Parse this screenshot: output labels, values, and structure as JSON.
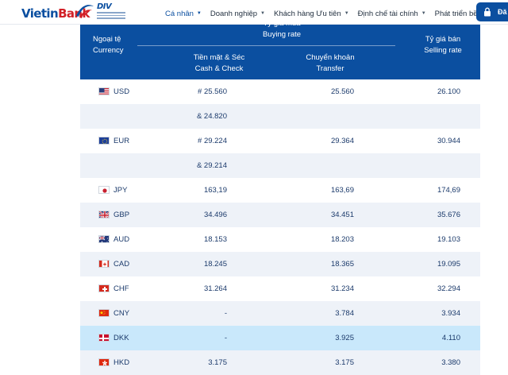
{
  "header": {
    "logo": {
      "text_part1": "Vietin",
      "text_part2": "Bank",
      "partner": "DIV"
    },
    "nav": [
      {
        "label": "Cá nhân",
        "active": true
      },
      {
        "label": "Doanh nghiệp",
        "active": false
      },
      {
        "label": "Khách hàng Ưu tiên",
        "active": false
      },
      {
        "label": "Định chế tài chính",
        "active": false
      },
      {
        "label": "Phát triển bền vững",
        "active": false
      }
    ],
    "login_label": "Đă"
  },
  "table": {
    "headers": {
      "currency_vi": "Ngoại tệ",
      "currency_en": "Currency",
      "buying_vi": "Tỷ giá mua",
      "buying_en": "Buying rate",
      "cash_vi": "Tiền mặt & Séc",
      "cash_en": "Cash & Check",
      "transfer_vi": "Chuyển khoản",
      "transfer_en": "Transfer",
      "selling_vi": "Tỷ giá bán",
      "selling_en": "Selling rate"
    },
    "rows": [
      {
        "flag": "us-flag-icon",
        "code": "USD",
        "cash": "# 25.560",
        "transfer": "25.560",
        "sell": "26.100"
      },
      {
        "flag": "",
        "code": "",
        "cash": "& 24.820",
        "transfer": "",
        "sell": ""
      },
      {
        "flag": "eu-flag-icon",
        "code": "EUR",
        "cash": "# 29.224",
        "transfer": "29.364",
        "sell": "30.944"
      },
      {
        "flag": "",
        "code": "",
        "cash": "& 29.214",
        "transfer": "",
        "sell": ""
      },
      {
        "flag": "jp-flag-icon",
        "code": "JPY",
        "cash": "163,19",
        "transfer": "163,69",
        "sell": "174,69"
      },
      {
        "flag": "gb-flag-icon",
        "code": "GBP",
        "cash": "34.496",
        "transfer": "34.451",
        "sell": "35.676"
      },
      {
        "flag": "au-flag-icon",
        "code": "AUD",
        "cash": "18.153",
        "transfer": "18.203",
        "sell": "19.103"
      },
      {
        "flag": "ca-flag-icon",
        "code": "CAD",
        "cash": "18.245",
        "transfer": "18.365",
        "sell": "19.095"
      },
      {
        "flag": "ch-flag-icon",
        "code": "CHF",
        "cash": "31.264",
        "transfer": "31.234",
        "sell": "32.294"
      },
      {
        "flag": "cn-flag-icon",
        "code": "CNY",
        "cash": "-",
        "transfer": "3.784",
        "sell": "3.934"
      },
      {
        "flag": "dk-flag-icon",
        "code": "DKK",
        "cash": "-",
        "transfer": "3.925",
        "sell": "4.110",
        "highlight": true
      },
      {
        "flag": "hk-flag-icon",
        "code": "HKD",
        "cash": "3.175",
        "transfer": "3.175",
        "sell": "3.380"
      }
    ]
  },
  "colors": {
    "brand_blue": "#0b4fa0",
    "brand_red": "#d22027",
    "row_alt": "#eef2f8",
    "row_highlight": "#c9e8fb"
  }
}
